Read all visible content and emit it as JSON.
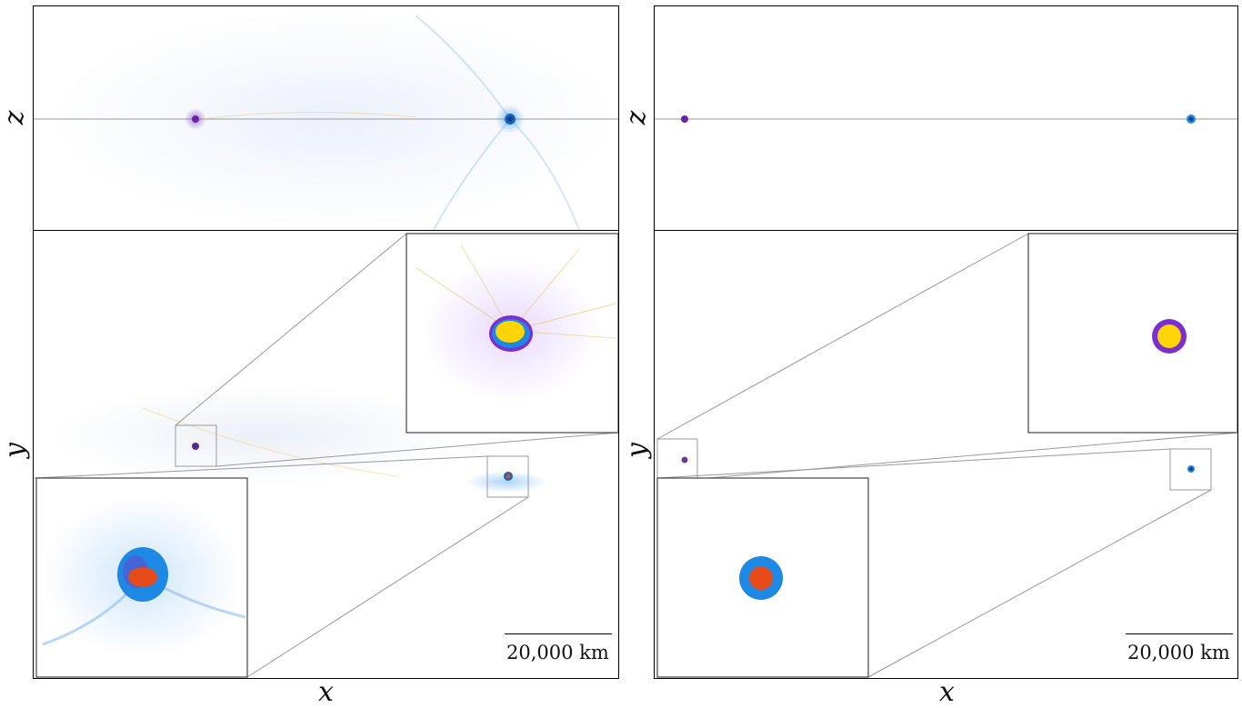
{
  "panels": {
    "left": {
      "axis_top_vertical": "z",
      "axis_bottom_vertical": "y",
      "axis_horizontal": "x",
      "scale_bar": "20,000 km",
      "colors": {
        "purple": "#6b21a8",
        "blue": "#1e88e5",
        "orange": "#e64a19",
        "yellow": "#ffd400"
      }
    },
    "right": {
      "axis_top_vertical": "z",
      "axis_bottom_vertical": "y",
      "axis_horizontal": "x",
      "scale_bar": "20,000 km",
      "colors": {
        "purple": "#6b21a8",
        "blue": "#1e88e5",
        "orange": "#e64a19",
        "yellow": "#ffd400"
      }
    }
  }
}
